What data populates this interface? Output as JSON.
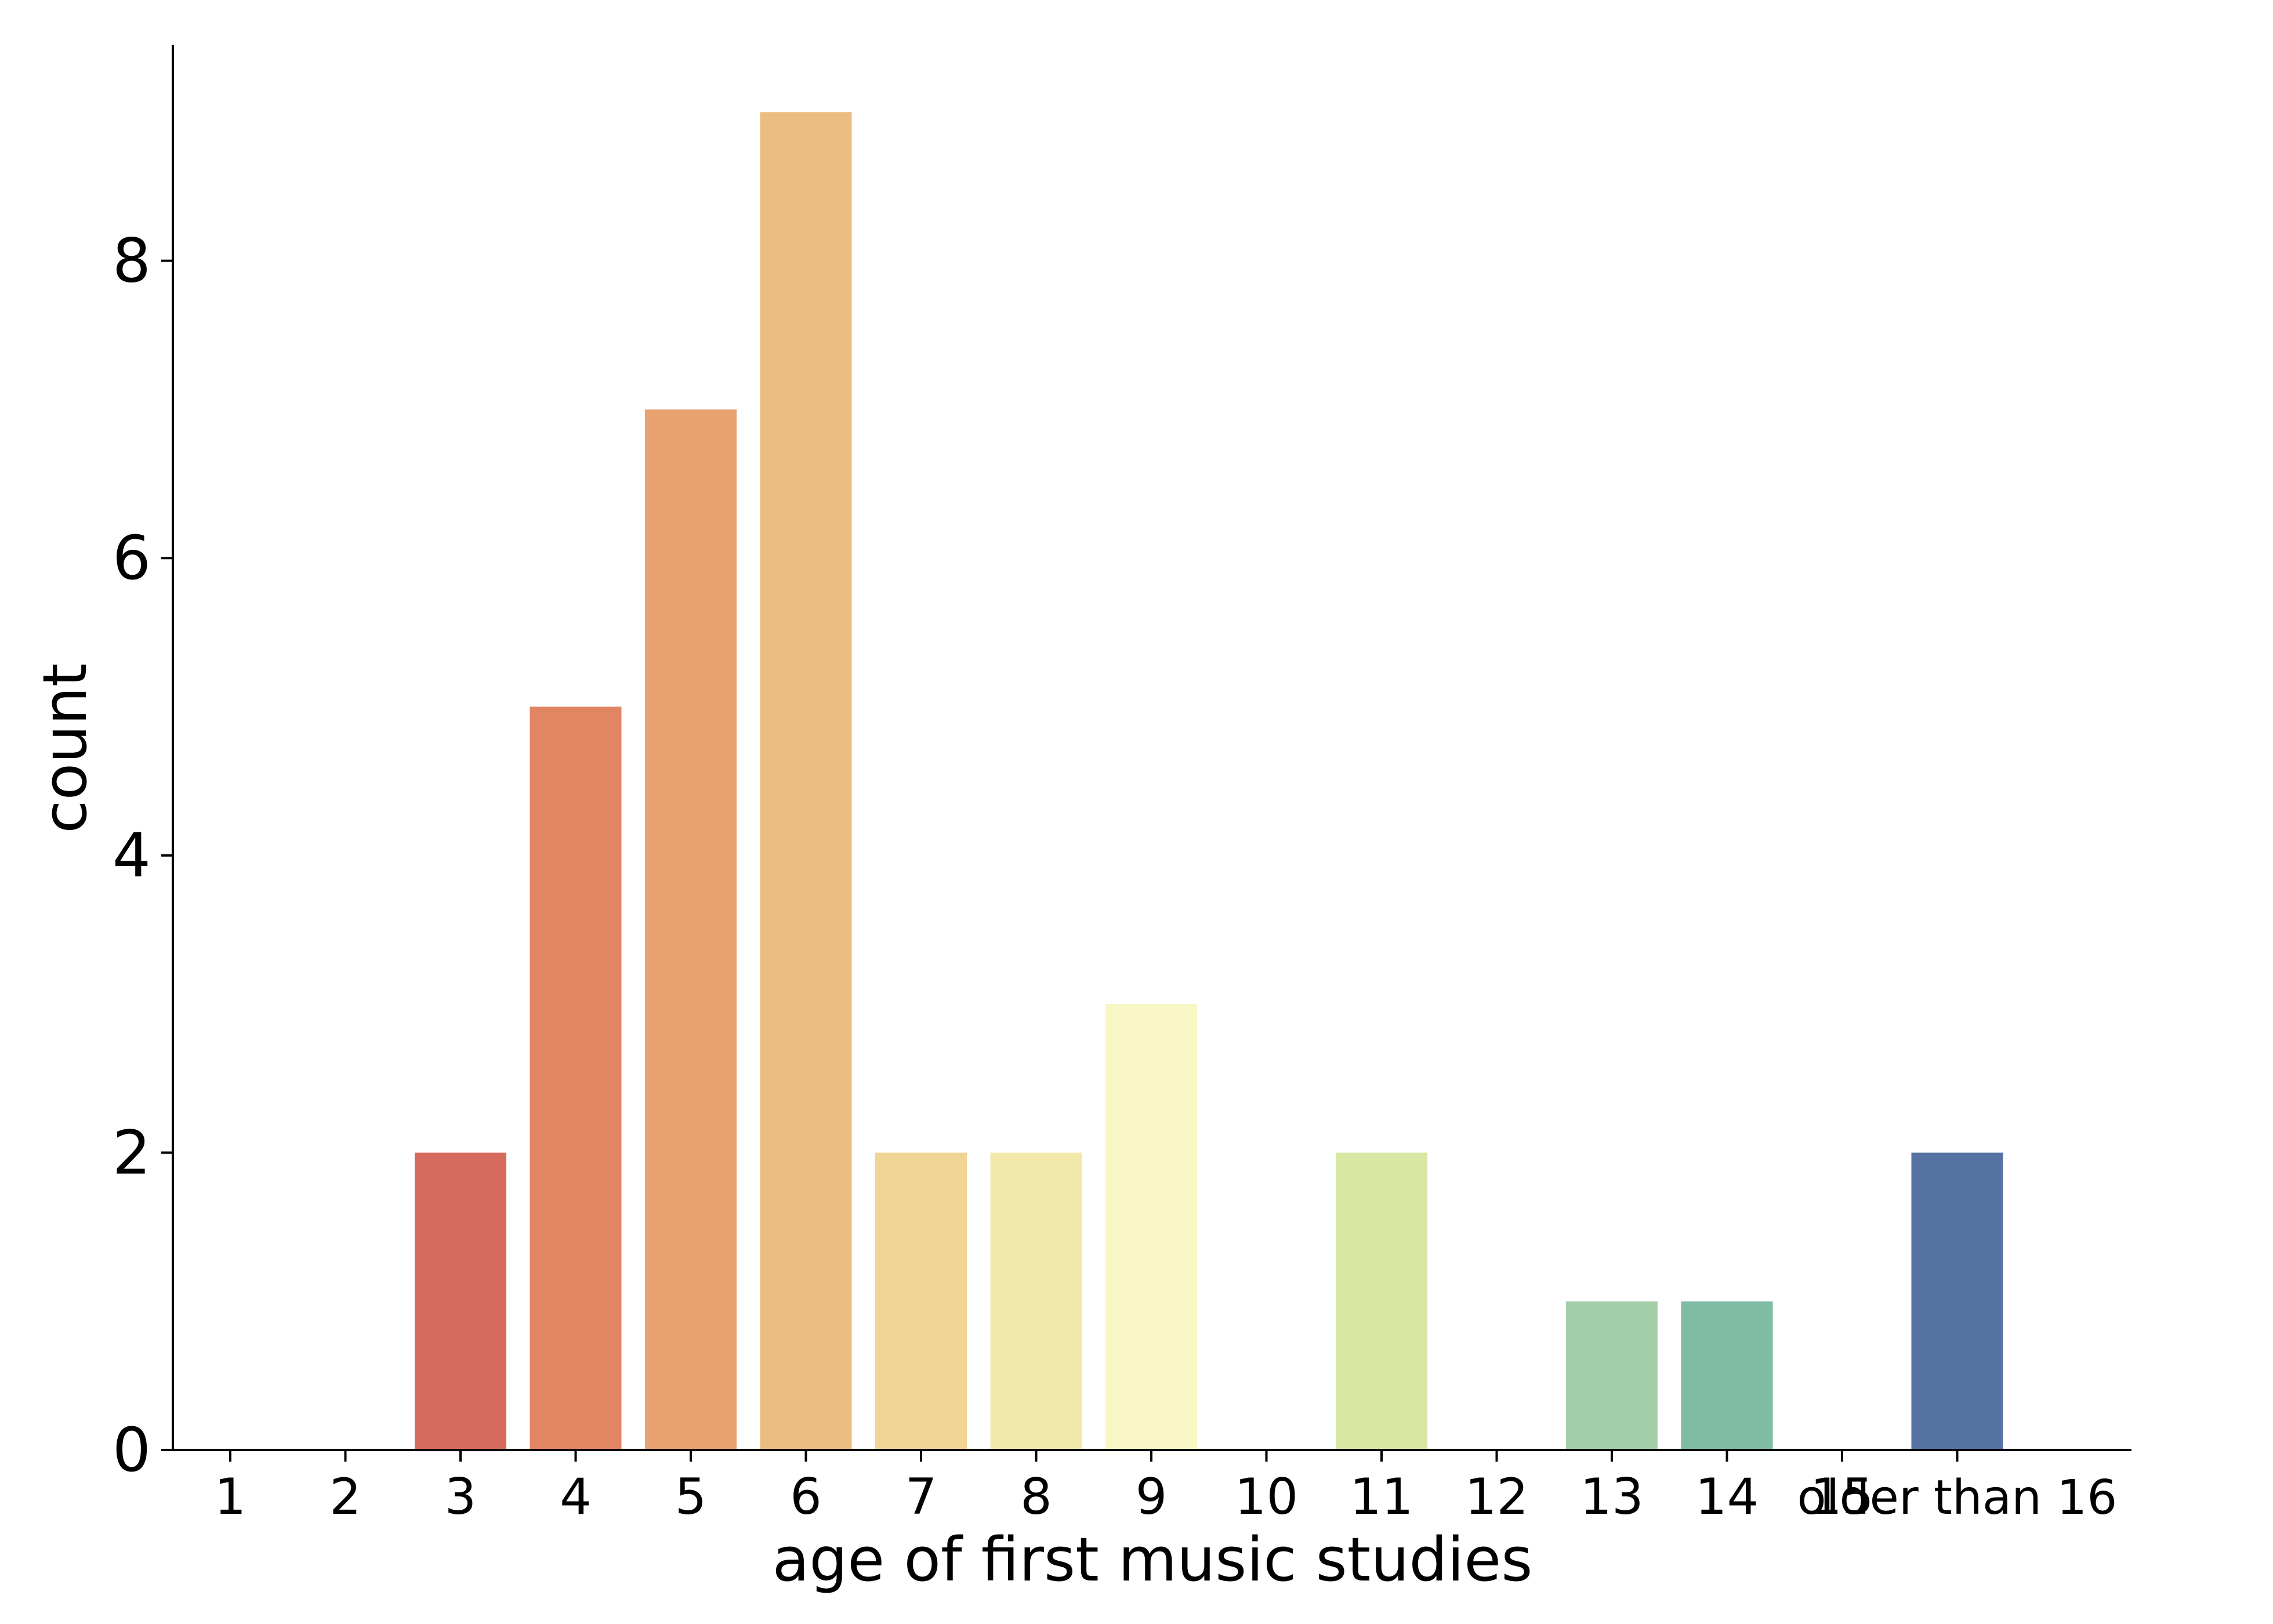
{
  "chart_data": {
    "type": "bar",
    "title": "",
    "xlabel": "age of first music studies",
    "ylabel": "count",
    "categories": [
      "1",
      "2",
      "3",
      "4",
      "5",
      "6",
      "7",
      "8",
      "9",
      "10",
      "11",
      "12",
      "13",
      "14",
      "15",
      "older than 16"
    ],
    "values": [
      0,
      0,
      2,
      5,
      7,
      9,
      2,
      2,
      3,
      0,
      2,
      0,
      1,
      1,
      0,
      2
    ],
    "colors": [
      "#9e0142",
      "#c0314a",
      "#d56b5c",
      "#e28562",
      "#e7a26f",
      "#ebbd80",
      "#efd496",
      "#f3e8ab",
      "#f8f6c4",
      "#e9f1ad",
      "#d8e8a4",
      "#bfdfa5",
      "#a3cfa9",
      "#80bba3",
      "#5d9fa5",
      "#5572a3"
    ],
    "ylim": [
      0,
      9.45
    ],
    "yticks": [
      0,
      2,
      4,
      6,
      8
    ],
    "grid": false,
    "legend": false
  }
}
